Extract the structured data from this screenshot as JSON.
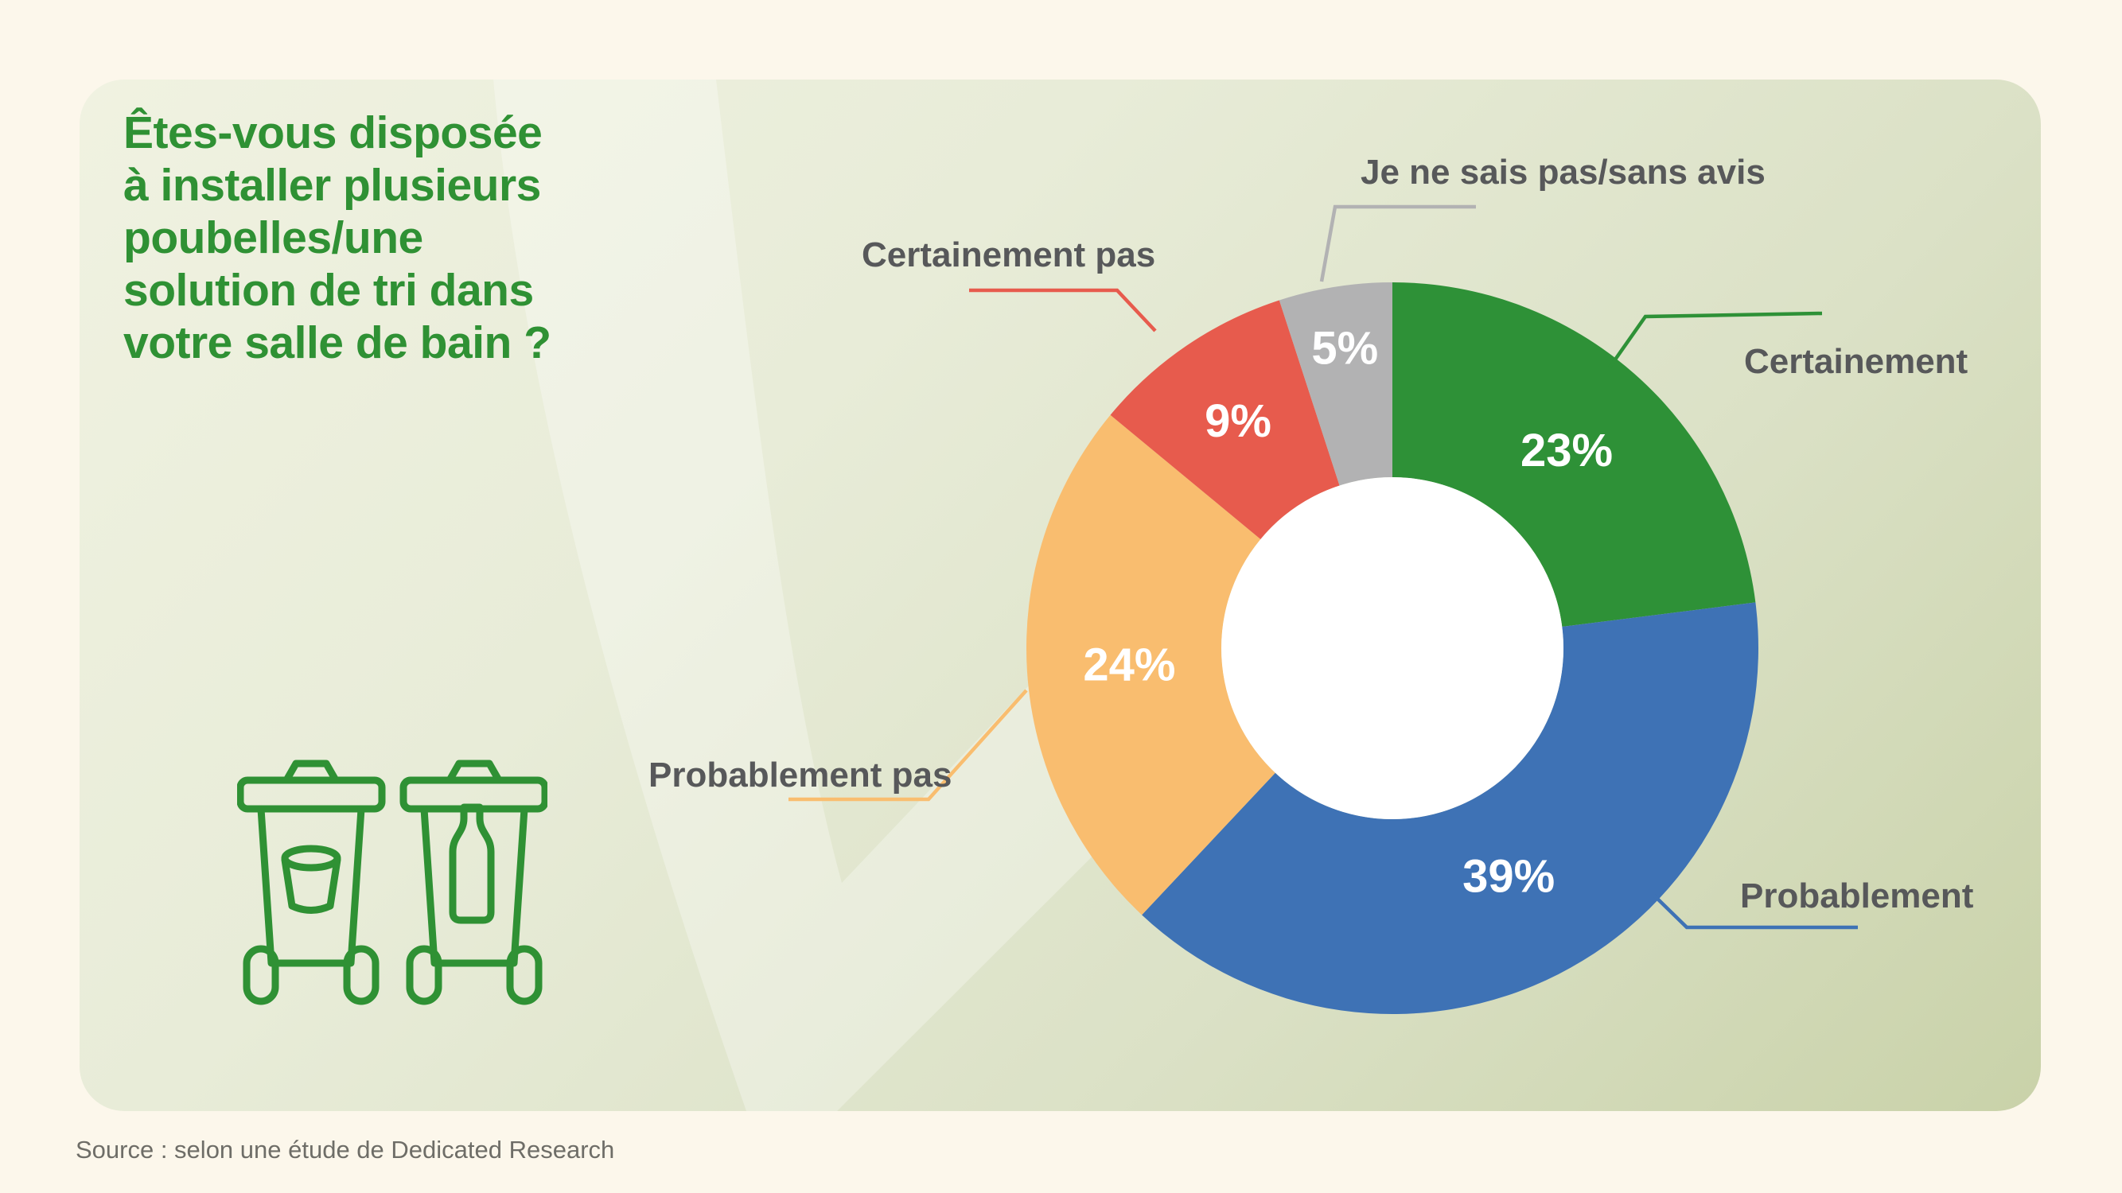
{
  "page": {
    "background_color": "#fcf7eb",
    "source_note": "Source : selon une étude de Dedicated Research"
  },
  "card": {
    "title": "Êtes-vous disposée\nà installer plusieurs\npoubelles/une\nsolution de tri dans\nvotre salle de bain ?",
    "title_color": "#2f9134"
  },
  "icons": {
    "bins_icon": "two-wheelie-recycling-bins",
    "bins_color": "#2f9134"
  },
  "chart_data": {
    "type": "pie",
    "variant": "donut",
    "title": "Êtes-vous disposée à installer plusieurs poubelles/une solution de tri dans votre salle de bain ?",
    "unit": "%",
    "start_angle_deg": 0,
    "direction": "clockwise",
    "legend_position": "callouts-around-chart",
    "slices": [
      {
        "label": "Certainement",
        "value": 23,
        "color": "#2e9137",
        "label_radius_frac": 0.72
      },
      {
        "label": "Probablement",
        "value": 39,
        "color": "#3e72b5",
        "label_radius_frac": 0.7
      },
      {
        "label": "Probablement pas",
        "value": 24,
        "color": "#f9bd6f",
        "label_radius_frac": 0.72
      },
      {
        "label": "Certainement pas",
        "value": 9,
        "color": "#e75b4d",
        "label_radius_frac": 0.75
      },
      {
        "label": "Je ne sais pas/sans avis",
        "value": 5,
        "color": "#b2b2b3",
        "label_radius_frac": 0.83
      }
    ],
    "value_label_color": "#ffffff",
    "callout_text_color": "#57585a",
    "hole_color": "#ffffff"
  }
}
